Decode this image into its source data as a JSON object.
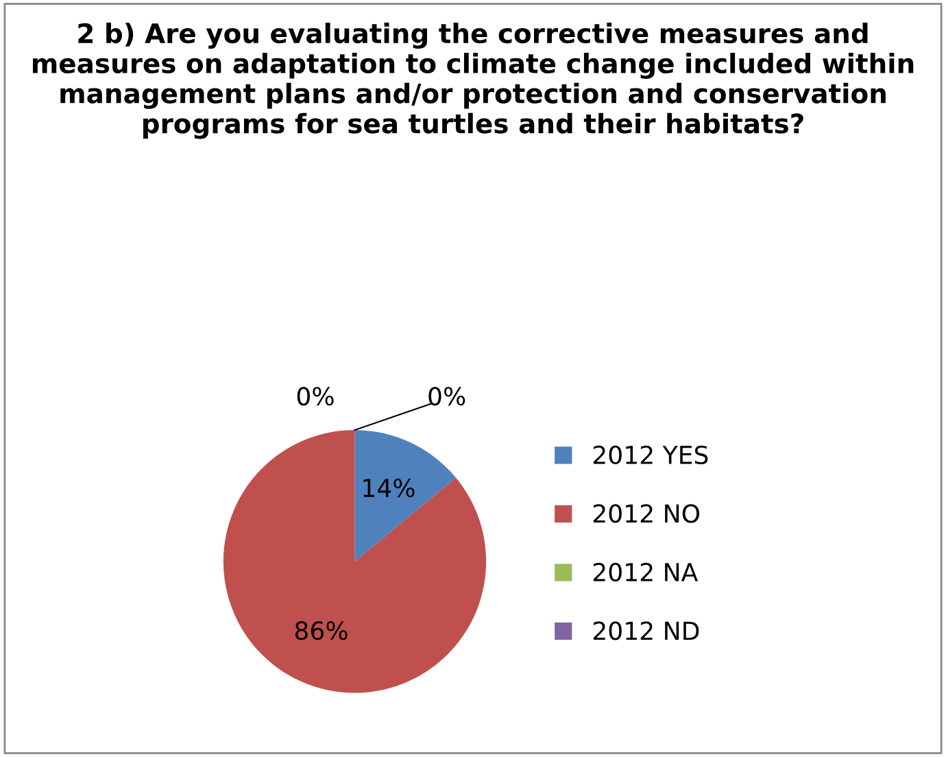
{
  "chart_data": {
    "type": "pie",
    "title": "2 b) Are you evaluating the corrective measures and measures on adaptation to climate change included within management plans and/or protection and conservation programs for sea turtles and their habitats?",
    "categories": [
      "2012 YES",
      "2012 NO",
      "2012 NA",
      "2012 ND"
    ],
    "values": [
      14,
      86,
      0,
      0
    ],
    "colors": [
      "#4f81bd",
      "#c0504d",
      "#9bbb59",
      "#8064a2"
    ],
    "value_labels": [
      "14%",
      "86%",
      "0%",
      "0%"
    ],
    "legend": "right"
  }
}
